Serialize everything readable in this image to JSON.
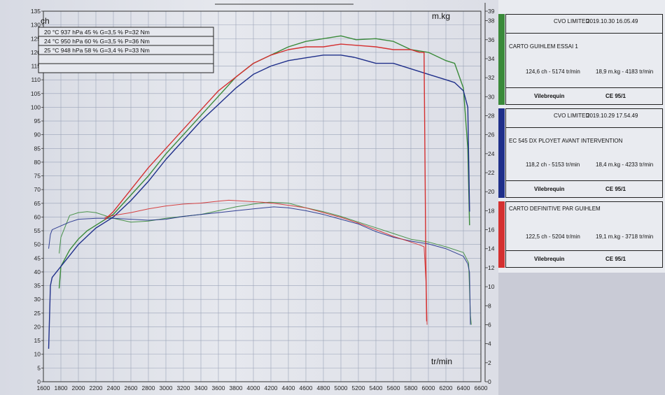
{
  "chart_data": {
    "type": "line",
    "xlabel": "tr/min",
    "ylabel_left": "ch",
    "ylabel_right": "m.kg",
    "xlim": [
      1600,
      6500
    ],
    "ylim_left": [
      0,
      135
    ],
    "ylim_right": [
      0,
      39
    ],
    "x_ticks": [
      1600,
      1800,
      2000,
      2200,
      2400,
      2600,
      2800,
      3000,
      3200,
      3400,
      3600,
      3800,
      4000,
      4200,
      4400,
      4600,
      4800,
      5000,
      5200,
      5400,
      5600,
      5800,
      6000,
      6200,
      6400,
      6600
    ],
    "y_ticks_left": [
      0,
      5,
      10,
      15,
      20,
      25,
      30,
      35,
      40,
      45,
      50,
      55,
      60,
      65,
      70,
      75,
      80,
      85,
      90,
      95,
      100,
      105,
      110,
      115,
      120,
      125,
      130,
      135
    ],
    "y_ticks_right": [
      0,
      2,
      4,
      6,
      8,
      10,
      12,
      14,
      16,
      18,
      20,
      22,
      24,
      26,
      28,
      30,
      32,
      34,
      36,
      38,
      39
    ],
    "grid": true,
    "conditions": [
      "20 °C  937 hPa  45 %  G=3,5 %  P=32 Nm",
      "24 °C  950 hPa  60 %  G=3,5 %  P=36 Nm",
      "25 °C  948 hPa  58 %  G=3,4 %  P=33 Nm"
    ],
    "series": [
      {
        "color": "#3a8a3a",
        "power": [
          [
            1780,
            34
          ],
          [
            1800,
            42
          ],
          [
            1900,
            48
          ],
          [
            2000,
            52
          ],
          [
            2100,
            55
          ],
          [
            2200,
            57
          ],
          [
            2300,
            59
          ],
          [
            2400,
            61
          ],
          [
            2600,
            68
          ],
          [
            2800,
            75
          ],
          [
            3000,
            83
          ],
          [
            3200,
            90
          ],
          [
            3400,
            97
          ],
          [
            3600,
            104
          ],
          [
            3800,
            111
          ],
          [
            4000,
            116
          ],
          [
            4200,
            119
          ],
          [
            4400,
            122
          ],
          [
            4600,
            124
          ],
          [
            4800,
            125
          ],
          [
            5000,
            126
          ],
          [
            5174,
            124.6
          ],
          [
            5400,
            125
          ],
          [
            5600,
            124
          ],
          [
            5800,
            121
          ],
          [
            6000,
            120
          ],
          [
            6200,
            117
          ],
          [
            6300,
            116
          ],
          [
            6400,
            107
          ],
          [
            6450,
            85
          ],
          [
            6470,
            57
          ]
        ],
        "torque": [
          [
            1780,
            13.5
          ],
          [
            1800,
            15.2
          ],
          [
            1900,
            17.5
          ],
          [
            2000,
            17.8
          ],
          [
            2100,
            17.9
          ],
          [
            2200,
            17.8
          ],
          [
            2400,
            17.2
          ],
          [
            2600,
            16.8
          ],
          [
            2800,
            16.9
          ],
          [
            3000,
            17.2
          ],
          [
            3200,
            17.4
          ],
          [
            3400,
            17.6
          ],
          [
            3600,
            18.0
          ],
          [
            3800,
            18.4
          ],
          [
            4000,
            18.7
          ],
          [
            4183,
            18.9
          ],
          [
            4400,
            18.8
          ],
          [
            4600,
            18.3
          ],
          [
            4800,
            17.9
          ],
          [
            5000,
            17.4
          ],
          [
            5200,
            16.8
          ],
          [
            5400,
            16.2
          ],
          [
            5600,
            15.6
          ],
          [
            5800,
            15.0
          ],
          [
            6000,
            14.7
          ],
          [
            6200,
            14.2
          ],
          [
            6400,
            13.6
          ],
          [
            6460,
            12.5
          ],
          [
            6480,
            7.0
          ],
          [
            6490,
            6.0
          ]
        ]
      },
      {
        "color": "#1f2f8a",
        "power": [
          [
            1660,
            12
          ],
          [
            1680,
            35
          ],
          [
            1700,
            38
          ],
          [
            1800,
            42
          ],
          [
            1900,
            46
          ],
          [
            2000,
            50
          ],
          [
            2100,
            53
          ],
          [
            2200,
            56
          ],
          [
            2300,
            58
          ],
          [
            2400,
            60
          ],
          [
            2600,
            66
          ],
          [
            2800,
            73
          ],
          [
            3000,
            81
          ],
          [
            3200,
            88
          ],
          [
            3400,
            95
          ],
          [
            3600,
            101
          ],
          [
            3800,
            107
          ],
          [
            4000,
            112
          ],
          [
            4200,
            115
          ],
          [
            4400,
            117
          ],
          [
            4600,
            118
          ],
          [
            4800,
            119
          ],
          [
            5000,
            119
          ],
          [
            5153,
            118.2
          ],
          [
            5400,
            116
          ],
          [
            5600,
            116
          ],
          [
            5800,
            114
          ],
          [
            6000,
            112
          ],
          [
            6200,
            110
          ],
          [
            6300,
            109
          ],
          [
            6400,
            106
          ],
          [
            6450,
            100
          ],
          [
            6470,
            62
          ]
        ],
        "torque": [
          [
            1660,
            14.0
          ],
          [
            1680,
            15.5
          ],
          [
            1700,
            16.0
          ],
          [
            1800,
            16.4
          ],
          [
            1900,
            16.8
          ],
          [
            2000,
            17.1
          ],
          [
            2200,
            17.2
          ],
          [
            2400,
            17.2
          ],
          [
            2600,
            17.1
          ],
          [
            2800,
            17.0
          ],
          [
            3000,
            17.1
          ],
          [
            3200,
            17.4
          ],
          [
            3400,
            17.6
          ],
          [
            3600,
            17.8
          ],
          [
            3800,
            18.0
          ],
          [
            4000,
            18.2
          ],
          [
            4233,
            18.4
          ],
          [
            4400,
            18.3
          ],
          [
            4600,
            18.0
          ],
          [
            4800,
            17.6
          ],
          [
            5000,
            17.1
          ],
          [
            5200,
            16.6
          ],
          [
            5400,
            15.8
          ],
          [
            5600,
            15.2
          ],
          [
            5800,
            14.8
          ],
          [
            6000,
            14.5
          ],
          [
            6200,
            14.0
          ],
          [
            6400,
            13.2
          ],
          [
            6450,
            12.4
          ],
          [
            6470,
            11.5
          ],
          [
            6480,
            6.0
          ]
        ]
      },
      {
        "color": "#d43030",
        "power": [
          [
            2300,
            59
          ],
          [
            2400,
            62
          ],
          [
            2600,
            70
          ],
          [
            2800,
            78
          ],
          [
            3000,
            85
          ],
          [
            3200,
            92
          ],
          [
            3400,
            99
          ],
          [
            3600,
            106
          ],
          [
            3800,
            111
          ],
          [
            4000,
            116
          ],
          [
            4200,
            119
          ],
          [
            4400,
            121
          ],
          [
            4600,
            122
          ],
          [
            4800,
            122
          ],
          [
            5000,
            123
          ],
          [
            5204,
            122.5
          ],
          [
            5400,
            122
          ],
          [
            5600,
            121
          ],
          [
            5800,
            121
          ],
          [
            5900,
            120
          ],
          [
            5950,
            120
          ],
          [
            5970,
            45
          ],
          [
            5980,
            22
          ]
        ],
        "torque": [
          [
            2300,
            17.3
          ],
          [
            2400,
            17.5
          ],
          [
            2600,
            17.8
          ],
          [
            2800,
            18.2
          ],
          [
            3000,
            18.5
          ],
          [
            3200,
            18.7
          ],
          [
            3400,
            18.8
          ],
          [
            3600,
            19.0
          ],
          [
            3718,
            19.1
          ],
          [
            3900,
            19.0
          ],
          [
            4100,
            18.9
          ],
          [
            4300,
            18.7
          ],
          [
            4600,
            18.3
          ],
          [
            4800,
            17.8
          ],
          [
            5000,
            17.3
          ],
          [
            5200,
            16.7
          ],
          [
            5400,
            16.0
          ],
          [
            5600,
            15.3
          ],
          [
            5800,
            14.7
          ],
          [
            5900,
            14.4
          ],
          [
            5950,
            14.2
          ],
          [
            5975,
            10.0
          ],
          [
            5985,
            6.0
          ]
        ]
      }
    ]
  },
  "legend": {
    "entries": [
      {
        "color": "#3a8a3a",
        "header_left": "CVO LIMITED",
        "header_right": "2019.10.30 16.05.49",
        "title": "CARTO GUIHLEM ESSAI 1",
        "power_text": "124,6 ch - 5174 tr/min",
        "torque_text": "18,9 m.kg - 4183 tr/min",
        "footer_left": "Vilebrequin",
        "footer_right": "CE 95/1"
      },
      {
        "color": "#1f2f8a",
        "header_left": "CVO LIMITED",
        "header_right": "2019.10.29 17.54.49",
        "title": "EC 545 DX  PLOYET  AVANT INTERVENTION",
        "power_text": "118,2 ch - 5153 tr/min",
        "torque_text": "18,4 m.kg - 4233 tr/min",
        "footer_left": "Vilebrequin",
        "footer_right": "CE 95/1"
      },
      {
        "color": "#d43030",
        "header_left": "",
        "header_right": "",
        "title": "CARTO DEFINITIVE PAR GUIHLEM",
        "power_text": "122,5 ch - 5204 tr/min",
        "torque_text": "19,1 m.kg - 3718 tr/min",
        "footer_left": "Vilebrequin",
        "footer_right": "CE 95/1"
      }
    ]
  }
}
